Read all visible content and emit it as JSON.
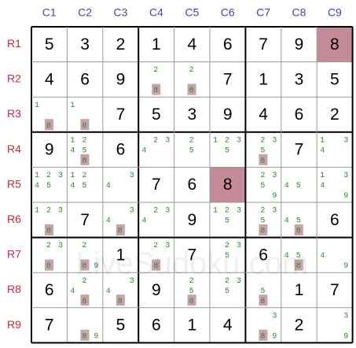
{
  "column_labels": [
    "C1",
    "C2",
    "C3",
    "C4",
    "C5",
    "C6",
    "C7",
    "C8",
    "C9"
  ],
  "row_labels": [
    "R1",
    "R2",
    "R3",
    "R4",
    "R5",
    "R6",
    "R7",
    "R8",
    "R9"
  ],
  "watermark": "LiveSudoku.com",
  "colors": {
    "cell_highlight": "#c48a99",
    "candidate_highlight": "#c9a0ab"
  },
  "grid": {
    "rows": [
      {
        "cells": [
          {
            "value": 5
          },
          {
            "value": 3
          },
          {
            "value": 2
          },
          {
            "value": 1
          },
          {
            "value": 4
          },
          {
            "value": 6
          },
          {
            "value": 7
          },
          {
            "value": 9
          },
          {
            "value": 8,
            "highlighted": true
          }
        ]
      },
      {
        "cells": [
          {
            "value": 4
          },
          {
            "value": 6
          },
          {
            "value": 9
          },
          {
            "candidates": [
              2,
              8
            ],
            "marked": 8
          },
          {
            "candidates": [
              2,
              8
            ],
            "marked": 8
          },
          {
            "value": 7
          },
          {
            "value": 1
          },
          {
            "value": 3
          },
          {
            "value": 5
          }
        ]
      },
      {
        "cells": [
          {
            "candidates": [
              1,
              8
            ],
            "marked": 8
          },
          {
            "candidates": [
              1,
              8
            ],
            "marked": 8
          },
          {
            "value": 7
          },
          {
            "value": 5
          },
          {
            "value": 3
          },
          {
            "value": 9
          },
          {
            "value": 4
          },
          {
            "value": 6
          },
          {
            "value": 2
          }
        ]
      },
      {
        "cells": [
          {
            "value": 9
          },
          {
            "candidates": [
              1,
              2,
              4,
              5,
              8
            ],
            "marked": 8
          },
          {
            "value": 6
          },
          {
            "candidates": [
              2,
              3,
              4
            ]
          },
          {
            "candidates": [
              2,
              5
            ]
          },
          {
            "candidates": [
              1,
              2,
              3,
              5
            ]
          },
          {
            "candidates": [
              2,
              3,
              5,
              8
            ],
            "marked": 8
          },
          {
            "value": 7
          },
          {
            "candidates": [
              1,
              3,
              4
            ]
          }
        ]
      },
      {
        "cells": [
          {
            "candidates": [
              1,
              2,
              3,
              4,
              5
            ]
          },
          {
            "candidates": [
              1,
              2,
              4,
              5
            ]
          },
          {
            "candidates": [
              3,
              4
            ]
          },
          {
            "value": 7
          },
          {
            "value": 6
          },
          {
            "value": 8,
            "highlighted": true
          },
          {
            "candidates": [
              2,
              3,
              5,
              9
            ]
          },
          {
            "candidates": [
              4,
              5
            ]
          },
          {
            "candidates": [
              1,
              3,
              4,
              9
            ]
          }
        ]
      },
      {
        "cells": [
          {
            "candidates": [
              1,
              2,
              3,
              8
            ],
            "marked": 8
          },
          {
            "value": 7
          },
          {
            "candidates": [
              3,
              4,
              8
            ],
            "marked": 8
          },
          {
            "candidates": [
              2,
              3,
              4
            ]
          },
          {
            "value": 9
          },
          {
            "candidates": [
              1,
              2,
              3,
              5
            ]
          },
          {
            "candidates": [
              2,
              3,
              5,
              8
            ],
            "marked": 8
          },
          {
            "candidates": [
              4,
              5,
              8
            ],
            "marked": 8
          },
          {
            "value": 6
          }
        ]
      },
      {
        "cells": [
          {
            "candidates": [
              2,
              3,
              8
            ],
            "marked": 8
          },
          {
            "candidates": [
              2,
              8,
              9
            ],
            "marked": 8
          },
          {
            "value": 1
          },
          {
            "candidates": [
              2,
              3,
              8
            ],
            "marked": 8
          },
          {
            "value": 7
          },
          {
            "candidates": [
              2,
              3,
              5
            ]
          },
          {
            "value": 6
          },
          {
            "candidates": [
              4,
              5,
              8
            ],
            "marked": 8
          },
          {
            "candidates": [
              4,
              9
            ]
          }
        ]
      },
      {
        "cells": [
          {
            "value": 6
          },
          {
            "candidates": [
              2,
              4,
              8
            ],
            "marked": 8
          },
          {
            "candidates": [
              3,
              4,
              8
            ],
            "marked": 8
          },
          {
            "value": 9
          },
          {
            "candidates": [
              2,
              5,
              8
            ],
            "marked": 8
          },
          {
            "candidates": [
              2,
              3,
              5
            ]
          },
          {
            "candidates": [
              5,
              8
            ],
            "marked": 8
          },
          {
            "value": 1
          },
          {
            "value": 7
          }
        ]
      },
      {
        "cells": [
          {
            "value": 7
          },
          {
            "candidates": [
              8,
              9
            ],
            "marked": 8
          },
          {
            "value": 5
          },
          {
            "value": 6
          },
          {
            "value": 1
          },
          {
            "value": 4
          },
          {
            "candidates": [
              3,
              8,
              9
            ],
            "marked": 8
          },
          {
            "value": 2
          },
          {
            "candidates": [
              3,
              9
            ]
          }
        ]
      }
    ]
  }
}
